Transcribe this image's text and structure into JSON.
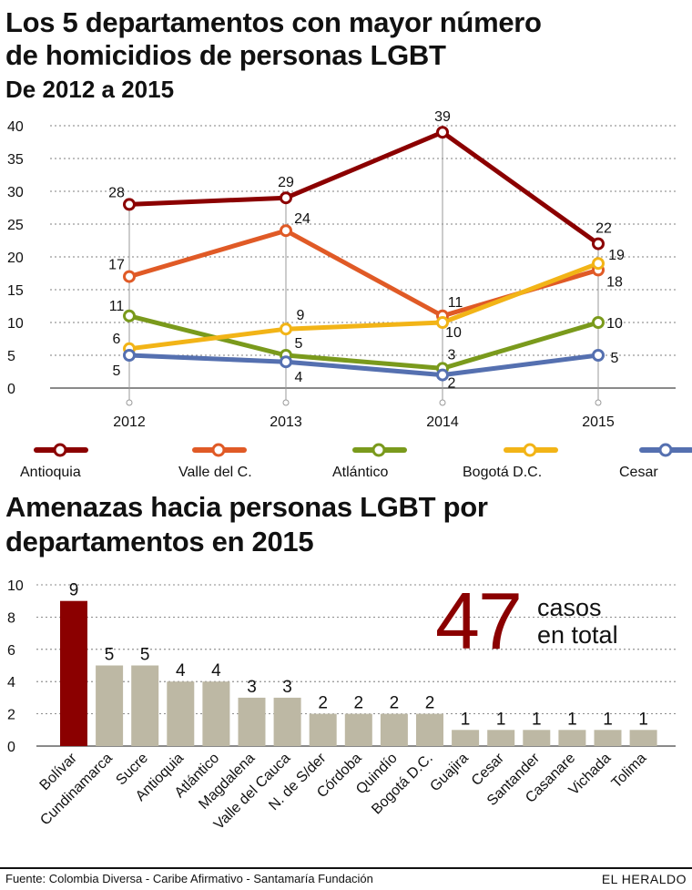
{
  "line_chart": {
    "title_line1": "Los 5 departamentos con mayor número",
    "title_line2": "de homicidios de personas LGBT",
    "subtitle": "De 2012 a 2015"
  },
  "bar_chart": {
    "title_line1": "Amenazas hacia personas LGBT por",
    "title_line2": "departamentos en 2015",
    "total_value": "47",
    "total_label_line1": "casos",
    "total_label_line2": "en total"
  },
  "footer": {
    "source": "Fuente: Colombia Diversa - Caribe Afirmativo - Santamaría Fundación",
    "brand": "EL HERALDO"
  },
  "colors": {
    "Antioquia": "#8b0000",
    "Valle del C.": "#e05a26",
    "Atlántico": "#7a9a1c",
    "Bogotá D.C.": "#f2b417",
    "Cesar": "#5570b0",
    "bar_highlight": "#8b0000",
    "bar_default": "#bdb8a4",
    "grid": "#777777"
  },
  "chart_data": [
    {
      "type": "line",
      "x": [
        "2012",
        "2013",
        "2014",
        "2015"
      ],
      "ylim": [
        0,
        40
      ],
      "yticks": [
        0,
        5,
        10,
        15,
        20,
        25,
        30,
        35,
        40
      ],
      "grid": true,
      "legend": "bottom",
      "series": [
        {
          "name": "Antioquia",
          "values": [
            28,
            29,
            39,
            22
          ]
        },
        {
          "name": "Valle del C.",
          "values": [
            17,
            24,
            11,
            18
          ]
        },
        {
          "name": "Atlántico",
          "values": [
            11,
            5,
            3,
            10
          ]
        },
        {
          "name": "Bogotá D.C.",
          "values": [
            6,
            9,
            10,
            19
          ]
        },
        {
          "name": "Cesar",
          "values": [
            5,
            4,
            2,
            5
          ]
        }
      ]
    },
    {
      "type": "bar",
      "categories": [
        "Bolívar",
        "Cundinamarca",
        "Sucre",
        "Antioquia",
        "Atlántico",
        "Magdalena",
        "Valle del Cauca",
        "N. de S/der",
        "Córdoba",
        "Quindío",
        "Bogotá D.C.",
        "Guajira",
        "Cesar",
        "Santander",
        "Casanare",
        "Vichada",
        "Tolima"
      ],
      "values": [
        9,
        5,
        5,
        4,
        4,
        3,
        3,
        2,
        2,
        2,
        2,
        1,
        1,
        1,
        1,
        1,
        1
      ],
      "ylim": [
        0,
        10
      ],
      "yticks": [
        0,
        2,
        4,
        6,
        8,
        10
      ],
      "grid": true
    }
  ]
}
